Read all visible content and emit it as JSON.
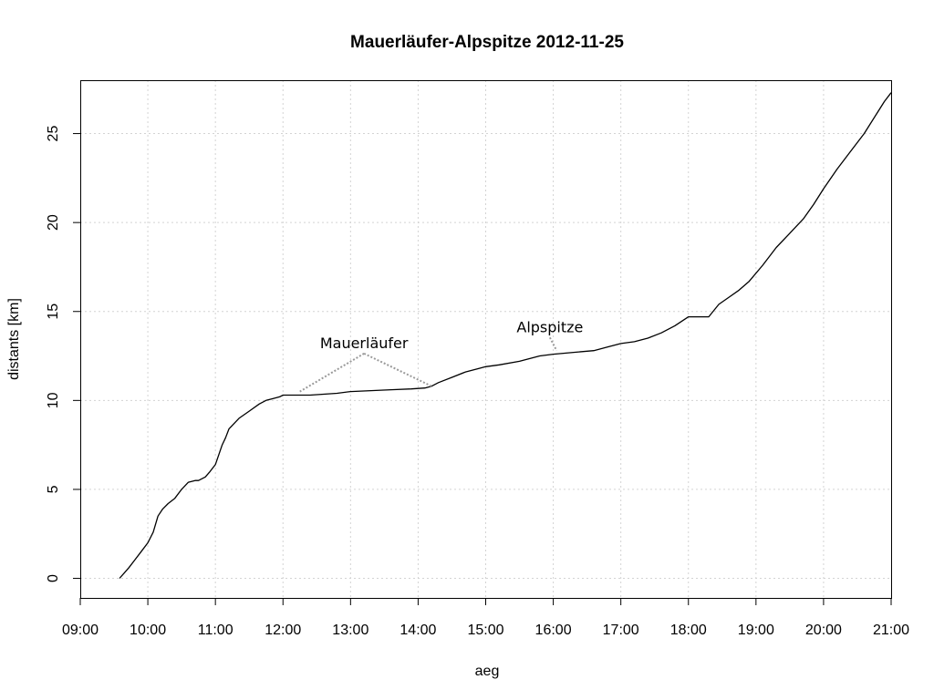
{
  "chart_data": {
    "type": "line",
    "title": "Mauerläufer-Alpspitze 2012-11-25",
    "xlabel": "aeg",
    "ylabel": "distants [km]",
    "xlim_hours": [
      9,
      21
    ],
    "ylim": [
      -1.1,
      28
    ],
    "grid": true,
    "x_ticks": [
      {
        "value": 9,
        "label": "09:00"
      },
      {
        "value": 10,
        "label": "10:00"
      },
      {
        "value": 11,
        "label": "11:00"
      },
      {
        "value": 12,
        "label": "12:00"
      },
      {
        "value": 13,
        "label": "13:00"
      },
      {
        "value": 14,
        "label": "14:00"
      },
      {
        "value": 15,
        "label": "15:00"
      },
      {
        "value": 16,
        "label": "16:00"
      },
      {
        "value": 17,
        "label": "17:00"
      },
      {
        "value": 18,
        "label": "18:00"
      },
      {
        "value": 19,
        "label": "19:00"
      },
      {
        "value": 20,
        "label": "20:00"
      },
      {
        "value": 21,
        "label": "21:00"
      }
    ],
    "y_ticks": [
      {
        "value": 0,
        "label": "0"
      },
      {
        "value": 5,
        "label": "5"
      },
      {
        "value": 10,
        "label": "10"
      },
      {
        "value": 15,
        "label": "15"
      },
      {
        "value": 20,
        "label": "20"
      },
      {
        "value": 25,
        "label": "25"
      }
    ],
    "series": [
      {
        "x": [
          9.58,
          9.65,
          9.72,
          9.8,
          9.9,
          10.0,
          10.08,
          10.15,
          10.22,
          10.3,
          10.4,
          10.5,
          10.6,
          10.7,
          10.75,
          10.85,
          10.92,
          11.0,
          11.1,
          11.15,
          11.2,
          11.25,
          11.3,
          11.35,
          11.5,
          11.65,
          11.75,
          11.85,
          11.95,
          12.0,
          12.2,
          12.4,
          12.6,
          12.8,
          13.0,
          13.3,
          13.6,
          13.9,
          14.1,
          14.2,
          14.3,
          14.5,
          14.7,
          14.9,
          15.0,
          15.2,
          15.5,
          15.8,
          16.0,
          16.3,
          16.6,
          16.8,
          17.0,
          17.2,
          17.4,
          17.6,
          17.8,
          18.0,
          18.2,
          18.3,
          18.45,
          18.6,
          18.75,
          18.9,
          19.1,
          19.3,
          19.5,
          19.7,
          19.85,
          20.0,
          20.2,
          20.4,
          20.6,
          20.8,
          20.9,
          21.0
        ],
        "y": [
          0,
          0.3,
          0.6,
          1.0,
          1.5,
          2.0,
          2.6,
          3.5,
          3.9,
          4.2,
          4.5,
          5.0,
          5.4,
          5.5,
          5.5,
          5.7,
          6.0,
          6.4,
          7.5,
          7.9,
          8.4,
          8.6,
          8.8,
          9.0,
          9.4,
          9.8,
          10.0,
          10.1,
          10.2,
          10.3,
          10.3,
          10.3,
          10.35,
          10.4,
          10.5,
          10.55,
          10.6,
          10.65,
          10.7,
          10.8,
          11.0,
          11.3,
          11.6,
          11.8,
          11.9,
          12.0,
          12.2,
          12.5,
          12.6,
          12.7,
          12.8,
          13.0,
          13.2,
          13.3,
          13.5,
          13.8,
          14.2,
          14.7,
          14.7,
          14.7,
          15.4,
          15.8,
          16.2,
          16.7,
          17.6,
          18.6,
          19.4,
          20.2,
          21.0,
          21.9,
          23.0,
          24.0,
          25.0,
          26.2,
          26.8,
          27.3
        ]
      }
    ],
    "annotations": [
      {
        "text": "Mauerläufer",
        "at": [
          13.2,
          13.2
        ],
        "leaders": [
          [
            12.25,
            10.5
          ],
          [
            14.2,
            10.8
          ]
        ]
      },
      {
        "text": "Alpspitze",
        "at": [
          15.95,
          14.1
        ],
        "leaders": [
          [
            16.05,
            12.8
          ]
        ]
      }
    ]
  }
}
